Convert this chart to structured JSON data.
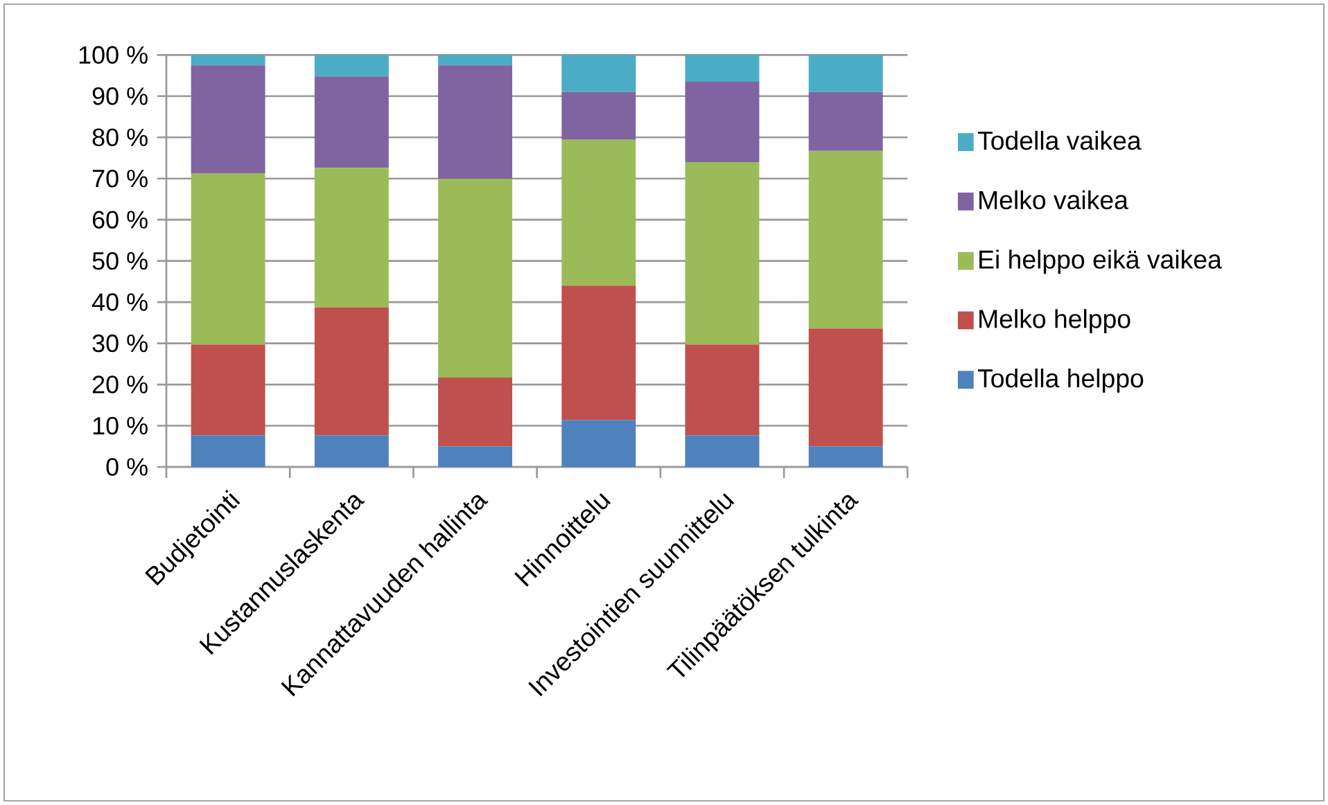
{
  "chart_data": {
    "type": "bar",
    "stacked": true,
    "categories": [
      "Budjetointi",
      "Kustannuslaskenta",
      "Kannattavuuden hallinta",
      "Hinnoittelu",
      "Investointien suunnittelu",
      "Tilinpäätöksen tulkinta"
    ],
    "series": [
      {
        "name": "Todella helppo",
        "color": "#4f81bd",
        "values": [
          7.7,
          7.7,
          5.0,
          11.4,
          7.7,
          5.0
        ]
      },
      {
        "name": "Melko helppo",
        "color": "#c0504d",
        "values": [
          22.0,
          31.0,
          16.7,
          32.6,
          22.0,
          28.6
        ]
      },
      {
        "name": "Ei helppo eikä vaikea",
        "color": "#9bbb59",
        "values": [
          41.6,
          33.9,
          48.2,
          35.4,
          44.3,
          43.1
        ]
      },
      {
        "name": "Melko vaikea",
        "color": "#8064a2",
        "values": [
          26.2,
          22.2,
          27.6,
          11.6,
          19.5,
          14.3
        ]
      },
      {
        "name": "Todella vaikea",
        "color": "#4bacc6",
        "values": [
          2.5,
          5.2,
          2.5,
          9.0,
          6.5,
          9.0
        ]
      }
    ],
    "ylim": [
      0,
      100
    ],
    "yticks": [
      {
        "value": 0,
        "label": "0 %"
      },
      {
        "value": 10,
        "label": "10 %"
      },
      {
        "value": 20,
        "label": "20 %"
      },
      {
        "value": 30,
        "label": "30 %"
      },
      {
        "value": 40,
        "label": "40 %"
      },
      {
        "value": 50,
        "label": "50 %"
      },
      {
        "value": 60,
        "label": "60 %"
      },
      {
        "value": 70,
        "label": "70 %"
      },
      {
        "value": 80,
        "label": "80 %"
      },
      {
        "value": 90,
        "label": "90 %"
      },
      {
        "value": 100,
        "label": "100 %"
      }
    ],
    "grid": "y",
    "legend": "right"
  }
}
